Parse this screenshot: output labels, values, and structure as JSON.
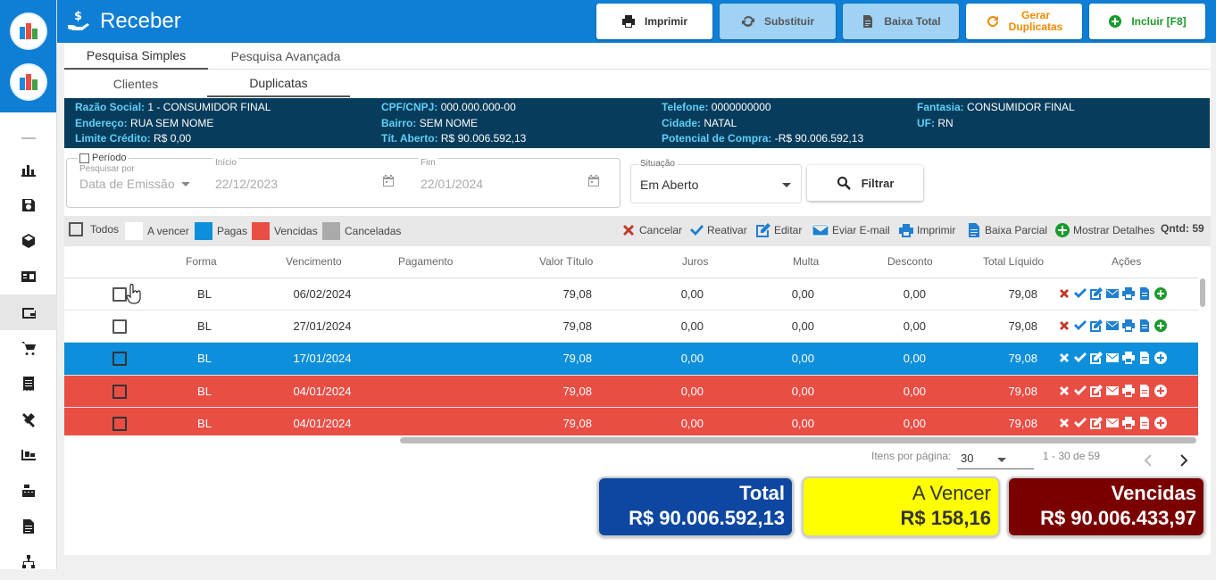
{
  "header": {
    "title": "Receber",
    "buttons": {
      "imprimir": "Imprimir",
      "substituir": "Substituir",
      "baixa_total": "Baixa Total",
      "gerar_line1": "Gerar",
      "gerar_line2": "Duplicatas",
      "incluir": "Incluir [F8]"
    }
  },
  "sidebar": {
    "icons": [
      "chart-icon",
      "save-icon",
      "box-icon",
      "id-card-icon",
      "wallet-icon",
      "cart-icon",
      "receipt-icon",
      "tools-icon",
      "truck-icon",
      "cash-register-icon",
      "document-icon",
      "network-icon"
    ],
    "active": "wallet-icon"
  },
  "tabs_top": [
    "Pesquisa Simples",
    "Pesquisa Avançada"
  ],
  "tabs_sub": [
    "Clientes",
    "Duplicatas"
  ],
  "client": {
    "razao_k": "Razão Social:",
    "razao_v": "1 - CONSUMIDOR FINAL",
    "endereco_k": "Endereço:",
    "endereco_v": "RUA SEM NOME",
    "limite_k": "Limite Crédito:",
    "limite_v": "R$ 0,00",
    "cpf_k": "CPF/CNPJ:",
    "cpf_v": "000.000.000-00",
    "bairro_k": "Bairro:",
    "bairro_v": "SEM NOME",
    "tit_k": "Tít. Aberto:",
    "tit_v": "R$ 90.006.592,13",
    "tel_k": "Telefone:",
    "tel_v": "0000000000",
    "cidade_k": "Cidade:",
    "cidade_v": "NATAL",
    "pot_k": "Potencial de Compra:",
    "pot_v": "-R$ 90.006.592,13",
    "fant_k": "Fantasia:",
    "fant_v": "CONSUMIDOR FINAL",
    "uf_k": "UF:",
    "uf_v": "RN"
  },
  "filters": {
    "periodo_label": "Período",
    "pesquisar_label": "Pesquisar por",
    "pesquisar_value": "Data de Emissão",
    "inicio_label": "Início",
    "inicio_value": "22/12/2023",
    "fim_label": "Fim",
    "fim_value": "22/01/2024",
    "situacao_label": "Situação",
    "situacao_value": "Em Aberto",
    "filtrar": "Filtrar"
  },
  "legend": {
    "todos": "Todos",
    "avencer": "A vencer",
    "pagas": "Pagas",
    "vencidas": "Vencidas",
    "canceladas": "Canceladas",
    "cancelar": "Cancelar",
    "reativar": "Reativar",
    "editar": "Editar",
    "email": "Eviar E-mail",
    "imprimir": "Imprimir",
    "baixa_parcial": "Baixa Parcial",
    "detalhes": "Mostrar Detalhes",
    "qntd": "Qntd: 59",
    "colors": {
      "avencer": "#ffffff",
      "pagas": "#0d8fdb",
      "vencidas": "#e94e45",
      "canceladas": "#aaaaaa"
    }
  },
  "table": {
    "headers": [
      "Forma",
      "Vencimento",
      "Pagamento",
      "Valor Título",
      "Juros",
      "Multa",
      "Desconto",
      "Total Líquido",
      "Ações"
    ],
    "rows": [
      {
        "forma": "BL",
        "venc": "06/02/2024",
        "pag": "",
        "valor": "79,08",
        "juros": "0,00",
        "multa": "0,00",
        "desc": "0,00",
        "total": "79,08",
        "status": "open"
      },
      {
        "forma": "BL",
        "venc": "27/01/2024",
        "pag": "",
        "valor": "79,08",
        "juros": "0,00",
        "multa": "0,00",
        "desc": "0,00",
        "total": "79,08",
        "status": "open"
      },
      {
        "forma": "BL",
        "venc": "17/01/2024",
        "pag": "",
        "valor": "79,08",
        "juros": "0,00",
        "multa": "0,00",
        "desc": "0,00",
        "total": "79,08",
        "status": "selected"
      },
      {
        "forma": "BL",
        "venc": "04/01/2024",
        "pag": "",
        "valor": "79,08",
        "juros": "0,00",
        "multa": "0,00",
        "desc": "0,00",
        "total": "79,08",
        "status": "overdue"
      },
      {
        "forma": "BL",
        "venc": "04/01/2024",
        "pag": "",
        "valor": "79,08",
        "juros": "0,00",
        "multa": "0,00",
        "desc": "0,00",
        "total": "79,08",
        "status": "overdue"
      }
    ]
  },
  "pager": {
    "label": "Itens por página:",
    "per_page": "30",
    "range": "1 - 30 de 59"
  },
  "totals": {
    "total_label": "Total",
    "total_value": "R$ 90.006.592,13",
    "avencer_label": "A Vencer",
    "avencer_value": "R$ 158,16",
    "vencidas_label": "Vencidas",
    "vencidas_value": "R$ 90.006.433,97"
  }
}
